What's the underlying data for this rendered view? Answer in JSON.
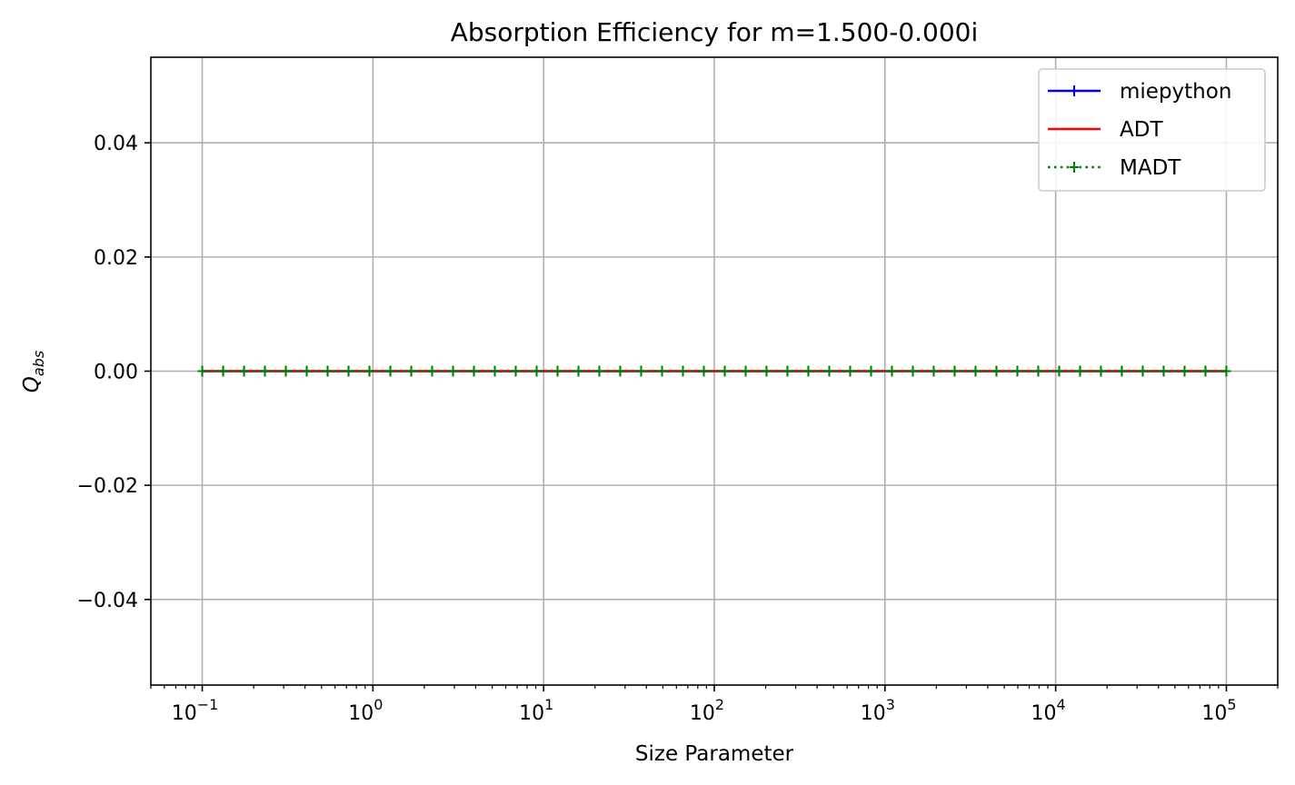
{
  "chart_data": {
    "type": "line",
    "title": "Absorption Efficiency for m=1.500-0.000i",
    "xlabel": "Size Parameter",
    "ylabel_main": "Q",
    "ylabel_sub": "abs",
    "xscale": "log",
    "xlim": [
      0.05,
      200000
    ],
    "ylim": [
      -0.055,
      0.055
    ],
    "x_ticks": [
      {
        "base": "10",
        "exp": "−1",
        "value": 0.1
      },
      {
        "base": "10",
        "exp": "0",
        "value": 1
      },
      {
        "base": "10",
        "exp": "1",
        "value": 10
      },
      {
        "base": "10",
        "exp": "2",
        "value": 100
      },
      {
        "base": "10",
        "exp": "3",
        "value": 1000
      },
      {
        "base": "10",
        "exp": "4",
        "value": 10000
      },
      {
        "base": "10",
        "exp": "5",
        "value": 100000
      }
    ],
    "y_ticks": [
      {
        "label": "−0.04",
        "value": -0.04
      },
      {
        "label": "−0.02",
        "value": -0.02
      },
      {
        "label": "0.00",
        "value": 0
      },
      {
        "label": "0.02",
        "value": 0.02
      },
      {
        "label": "0.04",
        "value": 0.04
      }
    ],
    "grid": true,
    "legend_position": "top-right",
    "x_range": [
      0.1,
      100000
    ],
    "points_count": 50,
    "series": [
      {
        "name": "miepython",
        "color": "#0000ff",
        "line": "solid",
        "marker": "+",
        "y_value": 0
      },
      {
        "name": "ADT",
        "color": "#ff0000",
        "line": "solid",
        "marker": "none",
        "y_value": 0
      },
      {
        "name": "MADT",
        "color": "#008000",
        "line": "dotted",
        "marker": "+",
        "y_value": 0
      }
    ]
  }
}
